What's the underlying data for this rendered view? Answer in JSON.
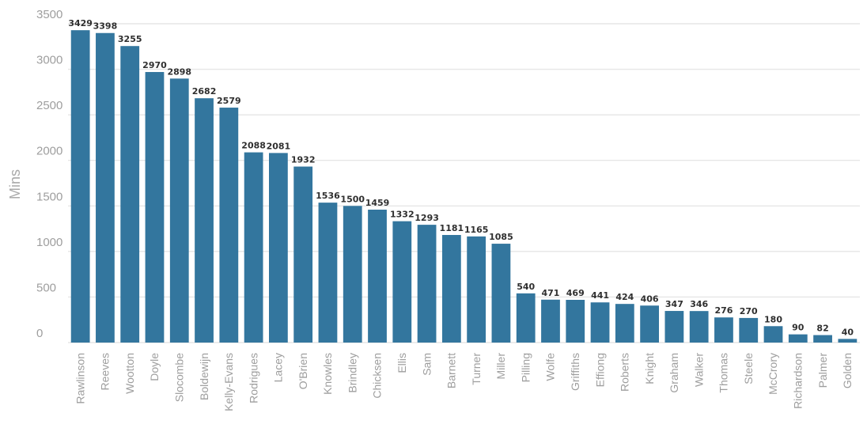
{
  "chart_data": {
    "type": "bar",
    "categories": [
      "Rawlinson",
      "Reeves",
      "Wootton",
      "Doyle",
      "Slocombe",
      "Boldewijn",
      "Kelly-Evans",
      "Rodrigues",
      "Lacey",
      "O'Brien",
      "Knowles",
      "Brindley",
      "Chicksen",
      "Ellis",
      "Sam",
      "Barnett",
      "Turner",
      "Miller",
      "Pilling",
      "Wolfe",
      "Griffiths",
      "Effiong",
      "Roberts",
      "Knight",
      "Graham",
      "Walker",
      "Thomas",
      "Steele",
      "McCrory",
      "Richardson",
      "Palmer",
      "Golden"
    ],
    "values": [
      3429,
      3398,
      3255,
      2970,
      2898,
      2682,
      2579,
      2088,
      2081,
      1932,
      1536,
      1500,
      1459,
      1332,
      1293,
      1181,
      1165,
      1085,
      540,
      471,
      469,
      441,
      424,
      406,
      347,
      346,
      276,
      270,
      180,
      90,
      82,
      40
    ],
    "value_labels": [
      "3429",
      "3398",
      "3255",
      "2970",
      "2898",
      "2682",
      "2579",
      "2088",
      "2081",
      "1932",
      "1536",
      "1500",
      "1459",
      "1332",
      "1293",
      "1181",
      "1165",
      "1085",
      "540",
      "471",
      "469",
      "441",
      "424",
      "406",
      "347",
      "346",
      "276",
      "270",
      "180",
      "90",
      "82",
      "40"
    ],
    "ylabel": "Mins",
    "ylim": [
      0,
      3500
    ],
    "yticks": [
      0,
      500,
      1000,
      1500,
      2000,
      2500,
      3000,
      3500
    ],
    "ytick_labels": [
      "0",
      "500",
      "1000",
      "1500",
      "2000",
      "2500",
      "3000",
      "3500"
    ],
    "grid": true,
    "colors": {
      "bar": "#33769e",
      "grid": "#e6e6e6",
      "tick_text": "#9e9e9e",
      "value_text": "#2f2f2f",
      "axis_title": "#a9a9a9"
    }
  }
}
